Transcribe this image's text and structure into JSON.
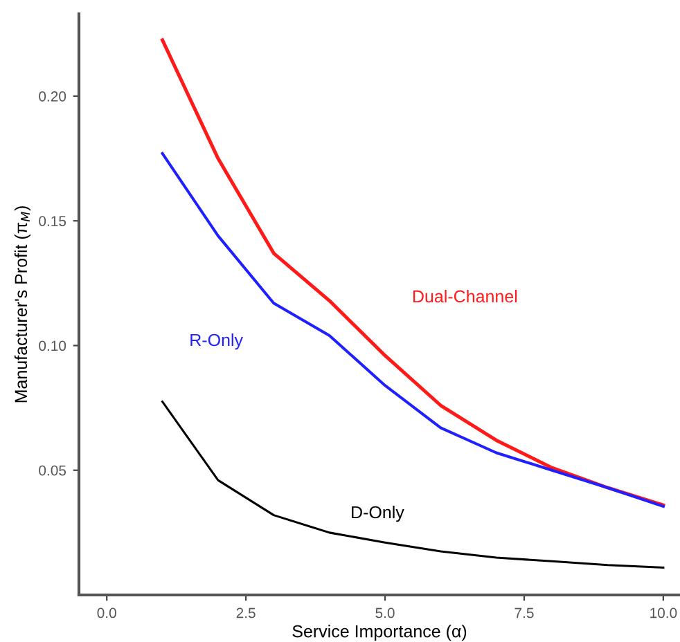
{
  "chart_data": {
    "type": "line",
    "xlabel": "Service Importance (α)",
    "ylabel": "Manufacturer's Profit (π$_{M}$)",
    "x": [
      1,
      2,
      3,
      4,
      5,
      6,
      7,
      8,
      9,
      10
    ],
    "series": [
      {
        "name": "Dual-Channel",
        "color": "#ff1a1a",
        "values": [
          0.2225,
          0.175,
          0.137,
          0.118,
          0.096,
          0.076,
          0.062,
          0.051,
          0.043,
          0.036
        ]
      },
      {
        "name": "R-Only",
        "color": "#2020ff",
        "values": [
          0.177,
          0.144,
          0.117,
          0.104,
          0.084,
          0.067,
          0.057,
          0.05,
          0.043,
          0.0355
        ]
      },
      {
        "name": "D-Only",
        "color": "#000000",
        "values": [
          0.0775,
          0.046,
          0.032,
          0.025,
          0.021,
          0.0175,
          0.015,
          0.0135,
          0.012,
          0.011
        ]
      }
    ],
    "xlim": [
      -0.5,
      10.3
    ],
    "ylim": [
      0.0,
      0.233
    ],
    "xticks": [
      {
        "value": 0,
        "label": "0.0"
      },
      2.5,
      {
        "value": 5,
        "label": "5.0"
      },
      7.5,
      {
        "value": 10,
        "label": "10.0"
      }
    ],
    "yticks": [
      0.05,
      {
        "value": 0.1,
        "label": "0.10"
      },
      0.15,
      {
        "value": 0.2,
        "label": "0.20"
      }
    ],
    "grid": false,
    "legend": false,
    "marker": "none",
    "line_style": "solid"
  }
}
